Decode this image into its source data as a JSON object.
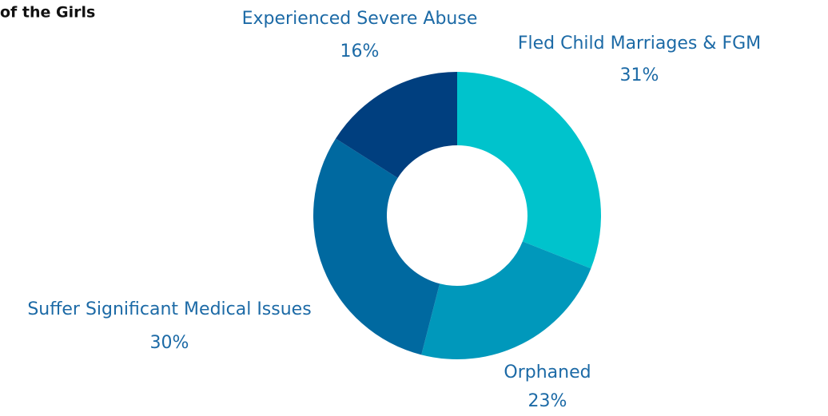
{
  "chart_data": {
    "type": "donut",
    "title": "of the Girls",
    "categories": [
      "Fled Child Marriages & FGM",
      "Orphaned",
      "Suffer Significant Medical Issues",
      "Experienced Severe Abuse"
    ],
    "values": [
      31,
      23,
      30,
      16
    ],
    "value_labels": [
      "31%",
      "23%",
      "30%",
      "16%"
    ],
    "colors": [
      "#00c3cc",
      "#0098bb",
      "#0069a0",
      "#003f7f"
    ]
  }
}
